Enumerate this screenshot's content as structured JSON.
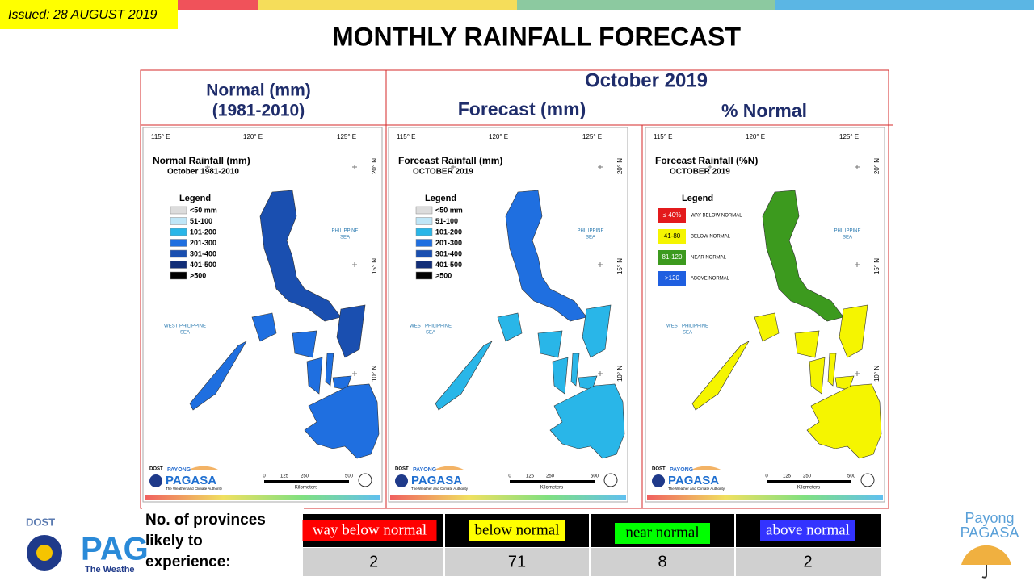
{
  "issued": "Issued: 28 AUGUST 2019",
  "title": "MONTHLY RAINFALL FORECAST",
  "headers": {
    "normal": [
      "Normal (mm)",
      "(1981-2010)"
    ],
    "month": "October 2019",
    "forecast": "Forecast (mm)",
    "percent": "% Normal"
  },
  "map_common": {
    "lon": [
      "115° E",
      "120° E",
      "125° E"
    ],
    "lat": [
      "20° N",
      "15° N",
      "10° N"
    ],
    "philippine_sea": [
      "PHILIPPINE",
      "SEA"
    ],
    "west_sea": [
      "WEST PHILIPPINE",
      "SEA"
    ],
    "scale": [
      "0",
      "125",
      "250",
      "500"
    ],
    "scale_unit": "Kilometers",
    "dost": "DOST",
    "payong": "PAYONG",
    "pagasa": "PAGASA",
    "tagline": "The Weather and Climate Authority"
  },
  "maps": [
    {
      "title": "Normal Rainfall (mm)",
      "subtitle": "October 1981-2010",
      "legend_title": "Legend",
      "legend": [
        {
          "label": "<50 mm",
          "color": "#dcdcdc"
        },
        {
          "label": "51-100",
          "color": "#bfe6f7"
        },
        {
          "label": "101-200",
          "color": "#29b6e8"
        },
        {
          "label": "201-300",
          "color": "#1f6fe0"
        },
        {
          "label": "301-400",
          "color": "#1a4fb0"
        },
        {
          "label": "401-500",
          "color": "#122e78"
        },
        {
          "label": ">500",
          "color": "#000000"
        }
      ]
    },
    {
      "title": "Forecast Rainfall (mm)",
      "subtitle": "OCTOBER 2019",
      "legend_title": "Legend",
      "legend": [
        {
          "label": "<50 mm",
          "color": "#dcdcdc"
        },
        {
          "label": "51-100",
          "color": "#bfe6f7"
        },
        {
          "label": "101-200",
          "color": "#29b6e8"
        },
        {
          "label": "201-300",
          "color": "#1f6fe0"
        },
        {
          "label": "301-400",
          "color": "#1a4fb0"
        },
        {
          "label": "401-500",
          "color": "#122e78"
        },
        {
          "label": ">500",
          "color": "#000000"
        }
      ]
    },
    {
      "title": "Forecast Rainfall (%N)",
      "subtitle": "OCTOBER 2019",
      "legend_title": "Legend",
      "legend": [
        {
          "label": "≤ 40%",
          "desc": "WAY BELOW NORMAL",
          "color": "#e31a1c"
        },
        {
          "label": "41-80",
          "desc": "BELOW NORMAL",
          "color": "#f5f500"
        },
        {
          "label": "81-120",
          "desc": "NEAR NORMAL",
          "color": "#3c9a1e"
        },
        {
          "label": ">120",
          "desc": "ABOVE NORMAL",
          "color": "#1f5fe0"
        }
      ]
    }
  ],
  "table": {
    "label": [
      "No. of provinces",
      "likely to",
      "experience:"
    ],
    "columns": [
      {
        "label": "way below normal",
        "color": "#ff0000",
        "text_color": "#ffffff",
        "count": 2
      },
      {
        "label": "below normal",
        "color": "#ffff00",
        "text_color": "#000000",
        "count": 71
      },
      {
        "label": "near normal",
        "color": "#00ff00",
        "text_color": "#000000",
        "count": 8
      },
      {
        "label": "above normal",
        "color": "#3333ff",
        "text_color": "#ffffff",
        "count": 2
      }
    ]
  },
  "logos": {
    "dost": "DOST",
    "pagasa_partial": "PAG",
    "tagline_partial": "The Weathe",
    "payong": "Payong",
    "pagasa": "PAGASA"
  }
}
